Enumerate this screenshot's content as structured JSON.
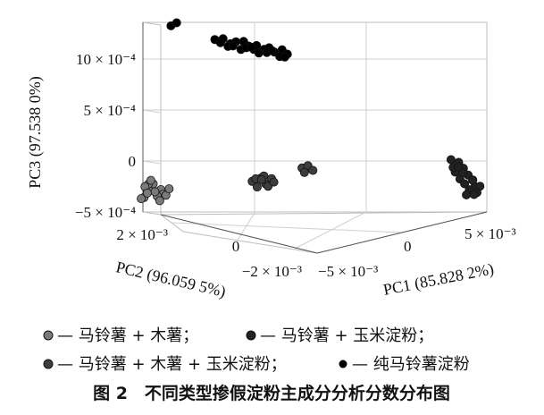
{
  "chart_data": {
    "type": "scatter",
    "projection": "3d",
    "axes": {
      "x": {
        "label": "PC1 (85.828 2%)",
        "ticks": [
          "−5 × 10⁻³",
          "0",
          "5 × 10⁻³"
        ],
        "range": [
          -0.0065,
          0.0065
        ]
      },
      "y": {
        "label": "PC2 (96.059 5%)",
        "ticks": [
          "−2 × 10⁻³",
          "0",
          "2 × 10⁻³"
        ],
        "range": [
          -0.0022,
          0.0022
        ]
      },
      "z": {
        "label": "PC3 (97.538 0%)",
        "ticks": [
          "−5 × 10⁻⁴",
          "0",
          "5 × 10⁻⁴",
          "10 × 10⁻⁴"
        ],
        "range": [
          -0.0005,
          0.001
        ]
      }
    },
    "grid": true,
    "series": [
      {
        "name": "马铃薯 + 木薯",
        "color": "#7a7a7a",
        "x": [
          -0.0063,
          -0.0059,
          -0.0061,
          -0.0057,
          -0.0064,
          -0.006,
          -0.0056,
          -0.0062,
          -0.0058,
          -0.0055,
          -0.0063,
          -0.0057,
          -0.0061,
          -0.0054,
          -0.0059,
          -0.0062
        ],
        "y": [
          0.0001,
          0.0003,
          0.0002,
          0.0004,
          0.0,
          0.0005,
          0.0002,
          0.0006,
          0.0001,
          0.0003,
          0.0004,
          0.0,
          0.0006,
          0.0005,
          0.0002,
          0.0003
        ],
        "z": [
          -0.00046,
          -0.00042,
          -0.0004,
          -0.00041,
          -0.00046,
          -0.00037,
          -0.00043,
          -0.00039,
          -0.00044,
          -0.00045,
          -0.00039,
          -0.00047,
          -0.00035,
          -0.00041,
          -0.00041,
          -0.00044
        ]
      },
      {
        "name": "马铃薯 + 玉米淀粉",
        "color": "#222222",
        "x": [
          0.0052,
          0.0055,
          0.0057,
          0.0054,
          0.0059,
          0.0061,
          0.0056,
          0.0058,
          0.0062,
          0.006,
          0.0063,
          0.0053,
          0.0057,
          0.0061,
          0.0064,
          0.0059,
          0.0055,
          0.0062
        ],
        "y": [
          0.0011,
          0.001,
          0.0008,
          0.0007,
          0.0006,
          0.0004,
          0.0005,
          0.0003,
          0.0002,
          0.0001,
          0.0,
          0.0009,
          0.0006,
          0.0003,
          0.0001,
          0.0,
          0.0008,
          -0.0001
        ],
        "z": [
          -4e-05,
          -5e-05,
          -8e-05,
          -0.00011,
          -0.00012,
          -0.00014,
          -0.00015,
          -0.00017,
          -0.00018,
          -0.0002,
          -0.00021,
          -9e-05,
          -0.0001,
          -0.00013,
          -0.00016,
          -0.00024,
          -7e-05,
          -0.00022
        ]
      },
      {
        "name": "马铃薯 + 木薯 + 玉米淀粉",
        "color": "#3d3d3d",
        "x": [
          -0.0023,
          -0.002,
          -0.0018,
          -0.0021,
          -0.0016,
          -0.0019,
          -0.0017,
          -0.0022,
          -0.0015,
          -0.002,
          -0.0005,
          -0.0003,
          -0.0001,
          -0.0004
        ],
        "y": [
          0.0009,
          0.0011,
          0.001,
          0.0008,
          0.0012,
          0.0013,
          0.0009,
          0.0012,
          0.0011,
          0.0014,
          0.0017,
          0.0019,
          0.0018,
          0.0016
        ],
        "z": [
          -0.00034,
          -0.00033,
          -0.00037,
          -0.00038,
          -0.00034,
          -0.00033,
          -0.00038,
          -0.00035,
          -0.00036,
          -0.00038,
          -0.00028,
          -0.00028,
          -0.00031,
          -0.00031
        ]
      },
      {
        "name": "纯马铃薯淀粉",
        "color": "#000000",
        "x": [
          -0.0055,
          -0.0053,
          -0.0038,
          -0.0035,
          -0.0032,
          -0.003,
          -0.0027,
          -0.0025,
          -0.0022,
          -0.0019,
          -0.0017,
          -0.0015,
          -0.0012,
          -0.001,
          -0.0033,
          -0.0028,
          -0.0023,
          -0.0018,
          -0.0013,
          -0.0031,
          -0.0026,
          -0.0021,
          -0.0016,
          -0.0011,
          -0.0036,
          -0.0024
        ],
        "y": [
          0.0021,
          0.0022,
          0.0017,
          0.0018,
          0.0016,
          0.0017,
          0.0016,
          0.0015,
          0.0015,
          0.0014,
          0.0013,
          0.0013,
          0.0012,
          0.0012,
          0.0017,
          0.0016,
          0.0015,
          0.0014,
          0.0013,
          0.0016,
          0.0016,
          0.0014,
          0.0014,
          0.0012,
          0.0018,
          0.0015
        ],
        "z": [
          0.00099,
          0.00101,
          0.00093,
          0.00093,
          0.00091,
          0.00092,
          0.00094,
          0.00091,
          0.00092,
          0.0009,
          0.00093,
          0.00089,
          0.00093,
          0.00089,
          0.00087,
          0.00086,
          0.00088,
          0.00087,
          0.00085,
          0.00089,
          0.00088,
          0.00086,
          0.00089,
          0.00086,
          0.00089,
          0.0009
        ]
      }
    ],
    "legend": {
      "placement": "bottom",
      "entries": [
        "— 马铃薯 + 木薯；",
        "— 马铃薯 + 玉米淀粉；",
        "— 马铃薯 + 木薯 + 玉米淀粉；",
        "— 纯马铃薯淀粉"
      ]
    },
    "caption": "图 2　不同类型掺假淀粉主成分分析分数分布图"
  }
}
